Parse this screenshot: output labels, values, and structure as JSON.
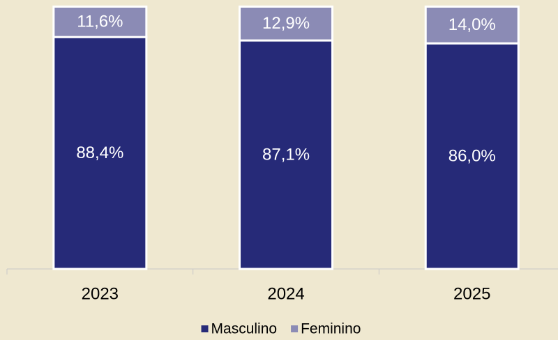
{
  "chart_data": {
    "type": "stacked_bar",
    "categories": [
      "2023",
      "2024",
      "2025"
    ],
    "series": [
      {
        "name": "Masculino",
        "color": "#262a78",
        "values": [
          88.4,
          87.1,
          86.0
        ],
        "value_labels": [
          "88,4%",
          "87,1%",
          "86,0%"
        ]
      },
      {
        "name": "Feminino",
        "color": "#8b8bb5",
        "values": [
          11.6,
          12.9,
          14.0
        ],
        "value_labels": [
          "11,6%",
          "12,9%",
          "14,0%"
        ]
      }
    ],
    "ylim": [
      0,
      100
    ],
    "legend": "bottom"
  }
}
